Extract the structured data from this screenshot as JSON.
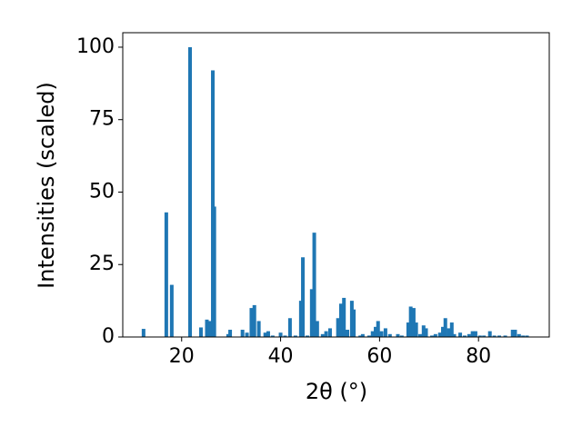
{
  "chart_data": {
    "type": "bar",
    "xlabel": "2θ (°)",
    "ylabel": "Intensities (scaled)",
    "color": "#1f77b4",
    "x": [
      12.3,
      16.9,
      18.0,
      21.7,
      23.9,
      25.1,
      25.7,
      26.3,
      26.6,
      29.4,
      29.8,
      32.3,
      33.2,
      34.1,
      34.7,
      35.6,
      36.9,
      37.5,
      38.4,
      40.0,
      40.9,
      41.9,
      43.0,
      44.1,
      44.5,
      45.4,
      46.3,
      46.8,
      47.4,
      48.5,
      49.2,
      50.0,
      51.6,
      52.2,
      52.8,
      53.5,
      54.4,
      54.8,
      56.1,
      56.6,
      57.9,
      58.6,
      59.2,
      59.7,
      60.4,
      61.2,
      62.1,
      63.7,
      64.5,
      65.8,
      66.3,
      66.9,
      67.4,
      68.2,
      68.9,
      69.4,
      70.6,
      71.3,
      72.2,
      72.8,
      73.3,
      74.0,
      74.6,
      75.1,
      76.3,
      77.2,
      78.1,
      78.8,
      79.4,
      80.3,
      81.1,
      82.3,
      83.2,
      84.2,
      85.4,
      86.9,
      87.4,
      88.2,
      89.0,
      89.8
    ],
    "values": [
      2.8,
      43,
      18,
      100,
      3.3,
      6,
      5.5,
      92,
      45,
      1,
      2.5,
      2.5,
      1.5,
      10,
      11,
      5.5,
      1.5,
      2,
      0.5,
      1.5,
      0.5,
      6.5,
      0.5,
      12.5,
      27.5,
      0.5,
      16.5,
      36,
      5.5,
      1,
      2,
      3,
      6.5,
      11.5,
      13.5,
      2.5,
      12.5,
      9.5,
      0.5,
      1,
      0.5,
      2,
      3.5,
      5.5,
      2,
      3,
      1,
      1,
      0.5,
      5,
      10.5,
      10,
      5,
      1,
      4,
      3,
      0.5,
      1,
      1.5,
      3.5,
      6.5,
      3,
      5,
      1,
      1.5,
      0.5,
      1,
      2,
      2,
      0.5,
      0.5,
      2,
      0.5,
      0.5,
      0.5,
      2.5,
      2.5,
      1,
      0.5,
      0.5
    ],
    "xlim": [
      8.1,
      94.3
    ],
    "ylim": [
      0,
      105
    ],
    "xticks": [
      20,
      40,
      60,
      80
    ],
    "yticks": [
      0,
      25,
      50,
      75,
      100
    ]
  }
}
